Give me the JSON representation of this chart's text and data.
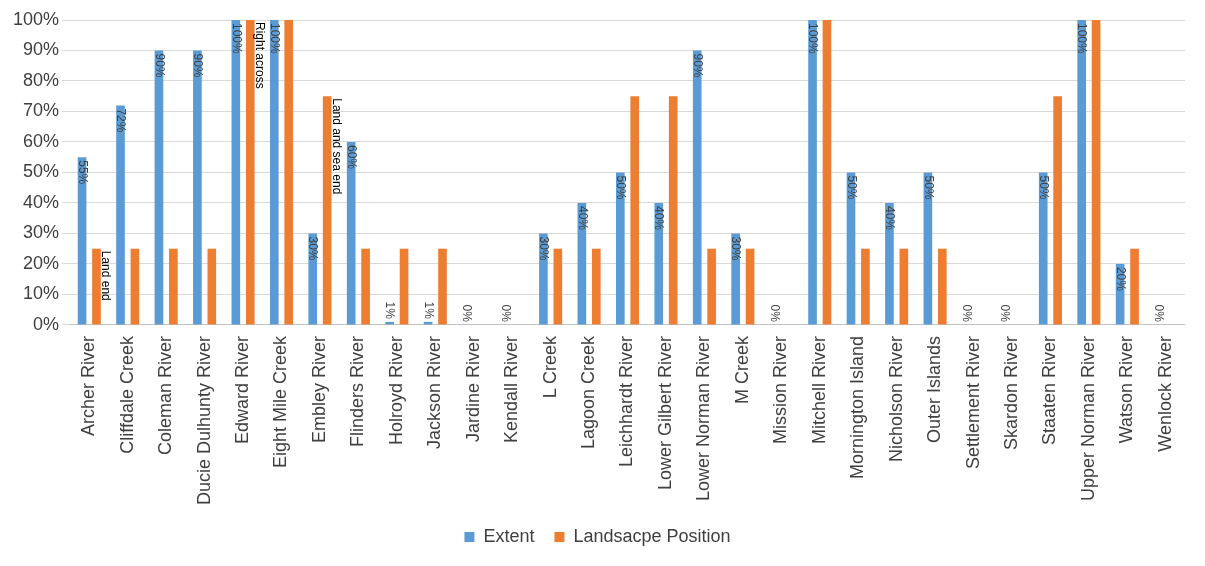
{
  "chart_data": {
    "type": "bar",
    "categories": [
      "Archer River",
      "Cliffdale Creek",
      "Coleman River",
      "Ducie Dulhunty River",
      "Edward River",
      "Eight Mile Creek",
      "Embley River",
      "Flinders River",
      "Holroyd River",
      "Jackson River",
      "Jardine River",
      "Kendall River",
      "L Creek",
      "Lagoon Creek",
      "Leichhardt River",
      "Lower Gilbert River",
      "Lower Norman River",
      "M Creek",
      "Mission River",
      "Mitchell River",
      "Mornington Island",
      "Nicholson River",
      "Outer Islands",
      "Settlement River",
      "Skardon River",
      "Staaten River",
      "Upper Norman River",
      "Watson River",
      "Wenlock River"
    ],
    "series": [
      {
        "name": "Extent",
        "color": "#5b9bd5",
        "values": [
          55,
          72,
          90,
          90,
          100,
          100,
          30,
          60,
          1,
          1,
          0,
          0,
          30,
          40,
          50,
          40,
          90,
          30,
          0,
          100,
          50,
          40,
          50,
          0,
          0,
          50,
          100,
          20,
          0
        ],
        "value_labels": [
          "55%",
          "72%",
          "90%",
          "90%",
          "100%",
          "100%",
          "30%",
          "60%",
          "1%",
          "1%",
          "0%",
          "0%",
          "30%",
          "40%",
          "50%",
          "40%",
          "90%",
          "30%",
          "0%",
          "100%",
          "50%",
          "40%",
          "50%",
          "0%",
          "0%",
          "50%",
          "100%",
          "20%",
          "0%"
        ]
      },
      {
        "name": "Landsacpe Position",
        "color": "#ed7d31",
        "values": [
          25,
          25,
          25,
          25,
          100,
          100,
          75,
          25,
          25,
          25,
          0,
          0,
          25,
          25,
          75,
          75,
          25,
          25,
          0,
          100,
          25,
          25,
          25,
          0,
          0,
          75,
          100,
          25,
          0
        ]
      }
    ],
    "ylim": [
      0,
      100
    ],
    "yticks": [
      {
        "value": 0,
        "label": "0%"
      },
      {
        "value": 10,
        "label": "10%"
      },
      {
        "value": 20,
        "label": "20%"
      },
      {
        "value": 30,
        "label": "30%"
      },
      {
        "value": 40,
        "label": "40%"
      },
      {
        "value": 50,
        "label": "50%"
      },
      {
        "value": 60,
        "label": "60%"
      },
      {
        "value": 70,
        "label": "70%"
      },
      {
        "value": 80,
        "label": "80%"
      },
      {
        "value": 90,
        "label": "90%"
      },
      {
        "value": 100,
        "label": "100%"
      }
    ],
    "grid": "y",
    "legend": "bottom",
    "annotations": [
      {
        "text": "Land end",
        "x": "Archer River",
        "y": 25
      },
      {
        "text": "Right across",
        "x": "Edward River",
        "y": 100
      },
      {
        "text": "Land and sea end",
        "x": "Embley River",
        "y": 75
      }
    ]
  }
}
